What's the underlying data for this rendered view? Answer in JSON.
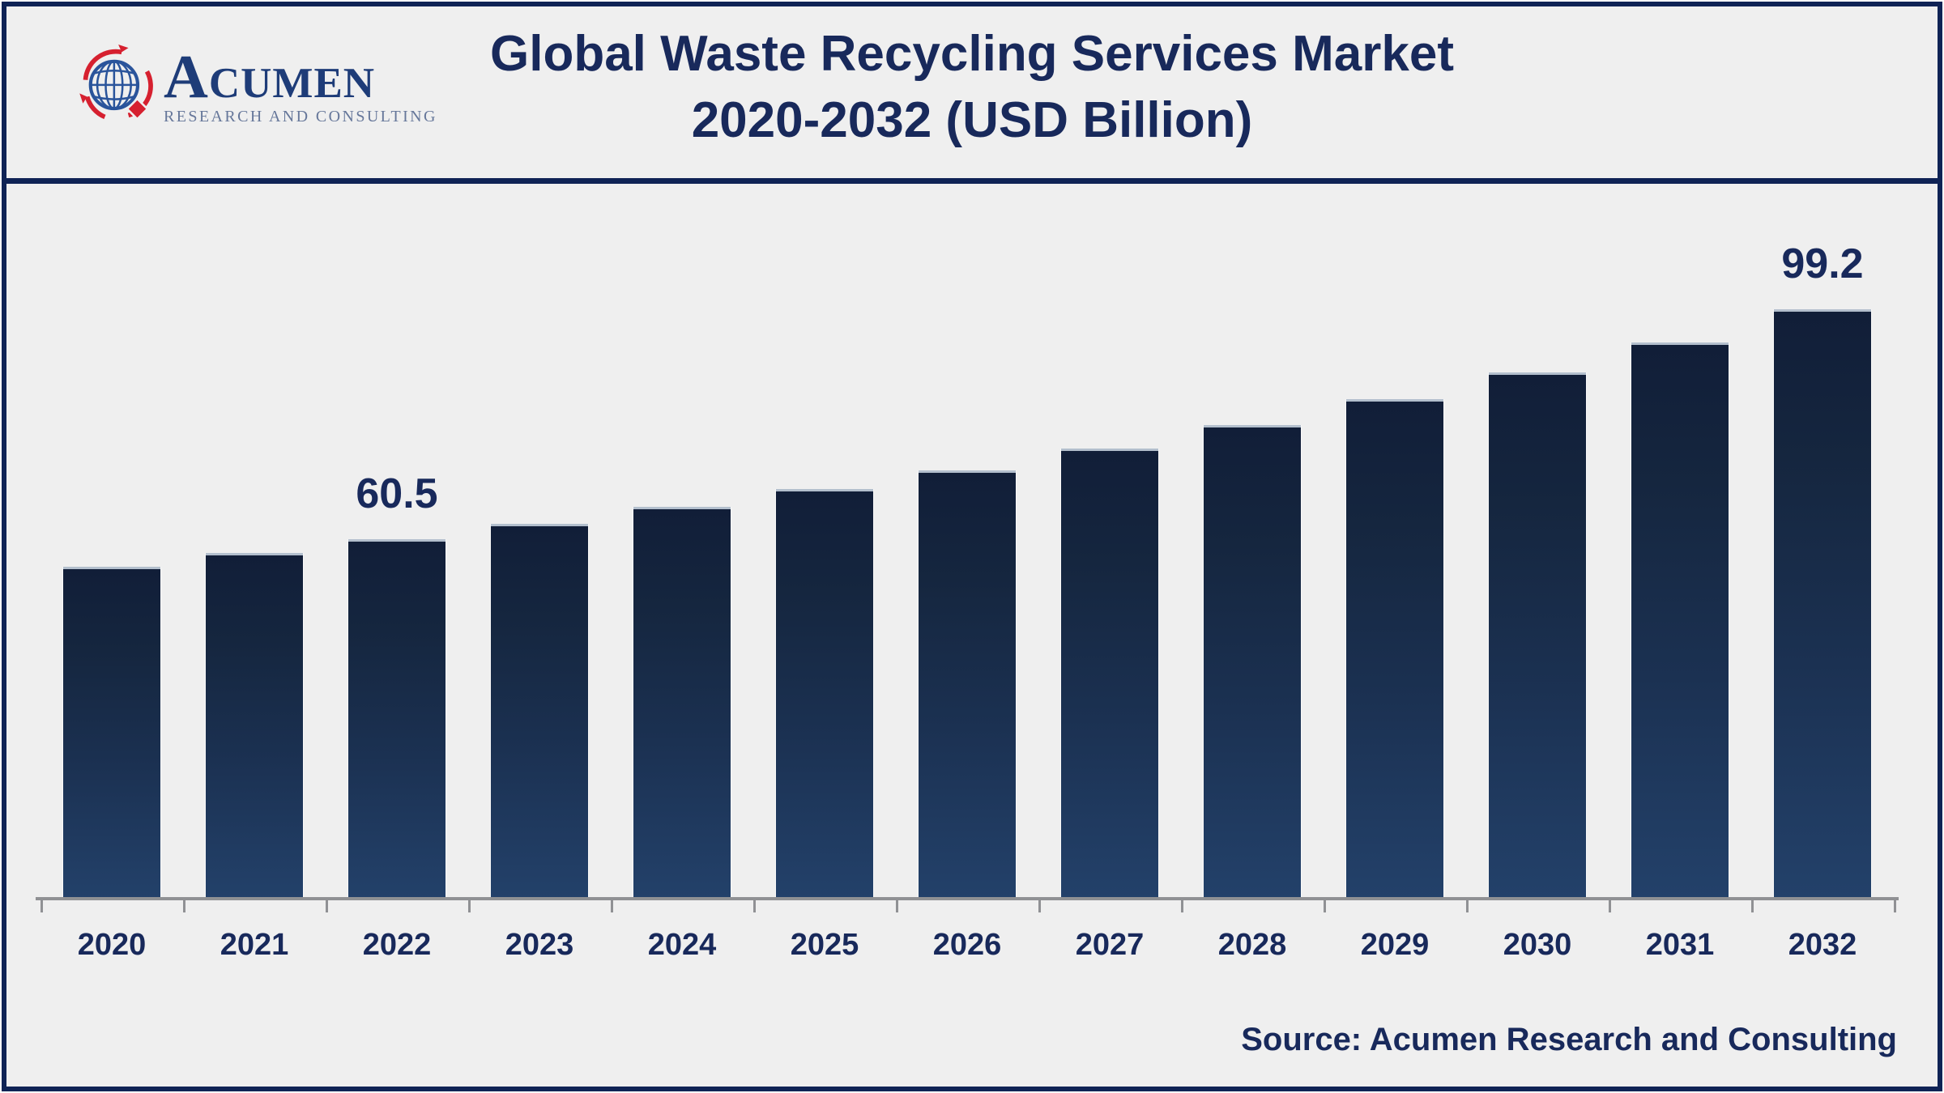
{
  "page": {
    "background": "#efefef",
    "frame_border_color": "#0f2355"
  },
  "header": {
    "logo": {
      "organization": "Acumen Research and Consulting",
      "wordmark": "Acumen",
      "tagline": "RESEARCH AND CONSULTING",
      "icon": "globe-with-red-orbit-arrows-and-diamond",
      "wordmark_color": "#1e3c78",
      "tagline_color": "#66779a",
      "globe_blue": "#2a549b",
      "accent_red": "#d6202f"
    },
    "title_line1": "Global Waste Recycling Services Market",
    "title_line2": "2020-2032 (USD Billion)",
    "title_color": "#18295b"
  },
  "chart_data": {
    "type": "bar",
    "title": "Global Waste Recycling Services Market 2020-2032 (USD Billion)",
    "unit": "USD Billion",
    "categories": [
      "2020",
      "2021",
      "2022",
      "2023",
      "2024",
      "2025",
      "2026",
      "2027",
      "2028",
      "2029",
      "2030",
      "2031",
      "2032"
    ],
    "values": [
      55.8,
      58.2,
      60.5,
      63.1,
      65.9,
      69.0,
      72.1,
      75.8,
      79.7,
      84.0,
      88.5,
      93.6,
      99.2
    ],
    "data_labels": [
      "",
      "",
      "60.5",
      "",
      "",
      "",
      "",
      "",
      "",
      "",
      "",
      "",
      "99.2"
    ],
    "xlabel": "",
    "ylabel": "",
    "ylim": [
      0,
      118
    ],
    "grid": false,
    "legend": false,
    "bar_color_top": "#111e38",
    "bar_color_bottom": "#23416a",
    "bar_top_cap_color": "#b3bfcd",
    "axis_color": "#909194",
    "label_color": "#18295b"
  },
  "footer": {
    "source": "Source: Acumen Research and Consulting"
  }
}
